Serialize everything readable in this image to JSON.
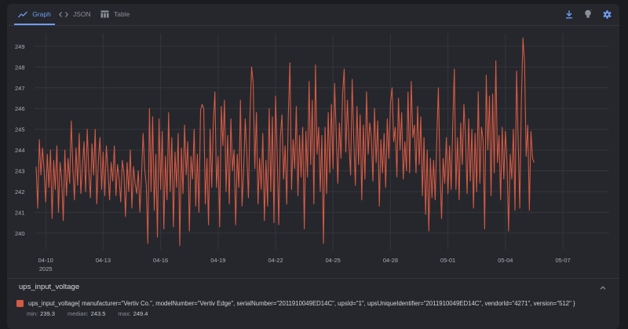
{
  "tabs": [
    {
      "label": "Graph",
      "icon": "line-chart-icon",
      "active": true
    },
    {
      "label": "JSON",
      "icon": "code-icon",
      "active": false
    },
    {
      "label": "Table",
      "icon": "table-icon",
      "active": false
    }
  ],
  "toolbar": {
    "download_icon": "download-icon",
    "hint_icon": "lightbulb-icon",
    "settings_icon": "gear-icon"
  },
  "colors": {
    "accent": "#6f9cf5",
    "series": "#d35a45",
    "grid": "#34363c"
  },
  "chart_data": {
    "type": "line",
    "title": "",
    "xlabel": "",
    "ylabel": "",
    "x_ticks": [
      {
        "label": "04-10",
        "sub": "2025",
        "day": "2025-04-10"
      },
      {
        "label": "04-13",
        "day": "2025-04-13"
      },
      {
        "label": "04-16",
        "day": "2025-04-16"
      },
      {
        "label": "04-19",
        "day": "2025-04-19"
      },
      {
        "label": "04-22",
        "day": "2025-04-22"
      },
      {
        "label": "04-25",
        "day": "2025-04-25"
      },
      {
        "label": "04-28",
        "day": "2025-04-28"
      },
      {
        "label": "05-01",
        "day": "2025-05-01"
      },
      {
        "label": "05-04",
        "day": "2025-05-04"
      },
      {
        "label": "05-07",
        "day": "2025-05-07"
      }
    ],
    "y_ticks": [
      240,
      241,
      242,
      243,
      244,
      245,
      246,
      247,
      248,
      249
    ],
    "ylim": [
      239.2,
      249.6
    ],
    "xlim": [
      "2025-04-09T10:00",
      "2025-05-09T10:00"
    ],
    "grid": true,
    "series": [
      {
        "name": "ups_input_voltage{manufacturer=\"Vertiv Co.\", modelNumber=\"Vertiv Edge\", serialNumber=\"2011910049ED14C\", upsId=\"1\", upsUniqueIdentifier=\"2011910049ED14C\", vendorId=\"4271\", version=\"512\"}",
        "start": "2025-04-09T12:00",
        "step_hours": 2,
        "values": [
          243.2,
          241.2,
          244.5,
          242.8,
          244.1,
          243.0,
          241.5,
          243.8,
          242.2,
          244.0,
          240.7,
          243.5,
          242.1,
          244.2,
          241.0,
          243.4,
          242.6,
          240.6,
          244.0,
          241.8,
          243.6,
          242.4,
          245.4,
          243.1,
          241.6,
          244.1,
          242.3,
          244.8,
          241.9,
          243.2,
          244.4,
          242.0,
          245.0,
          243.0,
          241.7,
          244.3,
          242.8,
          245.0,
          241.4,
          243.5,
          244.6,
          242.1,
          243.9,
          241.8,
          244.2,
          243.0,
          241.6,
          243.4,
          242.5,
          244.2,
          241.8,
          243.3,
          242.6,
          241.5,
          243.5,
          242.9,
          240.8,
          243.4,
          242.0,
          244.0,
          241.2,
          243.2,
          242.4,
          241.9,
          243.0,
          241.0,
          242.7,
          244.8,
          243.1,
          242.3,
          239.5,
          246.0,
          242.0,
          245.6,
          241.1,
          243.8,
          239.8,
          245.5,
          242.1,
          244.9,
          240.2,
          243.7,
          241.6,
          245.8,
          242.0,
          244.6,
          240.3,
          243.9,
          242.2,
          244.8,
          239.4,
          244.1,
          241.9,
          245.2,
          242.8,
          244.4,
          240.1,
          243.7,
          242.6,
          245.0,
          241.3,
          243.8,
          241.0,
          245.9,
          246.2,
          246.0,
          241.4,
          243.6,
          240.4,
          245.0,
          242.2,
          245.3,
          246.8,
          242.2,
          243.7,
          240.3,
          246.1,
          244.2,
          246.4,
          242.0,
          244.7,
          241.4,
          245.5,
          243.0,
          244.0,
          240.4,
          243.8,
          242.2,
          246.4,
          241.3,
          243.0,
          245.5,
          243.8,
          241.7,
          245.7,
          248.0,
          247.2,
          243.1,
          245.8,
          241.4,
          243.6,
          242.1,
          244.8,
          240.6,
          243.5,
          241.3,
          246.0,
          242.0,
          245.6,
          240.5,
          246.6,
          243.8,
          240.4,
          244.6,
          245.7,
          242.6,
          244.2,
          241.4,
          245.7,
          248.2,
          242.1,
          244.5,
          243.1,
          246.1,
          241.8,
          244.7,
          242.7,
          245.1,
          240.2,
          244.9,
          242.7,
          247.3,
          243.3,
          246.4,
          241.4,
          248.1,
          243.8,
          245.1,
          242.0,
          244.7,
          239.5,
          245.1,
          241.9,
          245.8,
          242.9,
          246.2,
          243.1,
          247.2,
          244.8,
          242.4,
          245.3,
          243.6,
          246.7,
          247.9,
          243.9,
          246.4,
          244.3,
          242.8,
          247.4,
          244.5,
          242.3,
          246.1,
          243.3,
          245.7,
          241.6,
          245.2,
          242.6,
          246.8,
          243.8,
          245.3,
          244.6,
          242.5,
          246.0,
          243.4,
          245.4,
          241.3,
          244.5,
          242.9,
          244.8,
          242.2,
          245.5,
          243.6,
          246.3,
          247.0,
          244.4,
          245.1,
          242.7,
          246.5,
          244.0,
          245.8,
          242.6,
          244.4,
          243.0,
          246.8,
          242.9,
          247.3,
          244.6,
          245.2,
          242.9,
          246.1,
          243.3,
          245.6,
          241.8,
          244.6,
          240.9,
          244.0,
          240.1,
          243.6,
          241.7,
          243.5,
          241.6,
          244.5,
          247.0,
          243.0,
          240.7,
          243.6,
          242.4,
          244.6,
          241.9,
          244.2,
          242.1,
          245.2,
          247.9,
          242.1,
          244.6,
          241.6,
          245.3,
          243.3,
          246.2,
          244.7,
          241.9,
          245.5,
          242.5,
          245.0,
          241.2,
          244.8,
          242.0,
          246.8,
          242.4,
          245.1,
          244.5,
          240.2,
          247.6,
          244.0,
          246.6,
          241.8,
          246.7,
          242.9,
          248.3,
          243.4,
          244.7,
          241.6,
          245.1,
          242.6,
          244.9,
          243.4,
          240.1,
          243.8,
          242.6,
          245.0,
          241.1,
          247.8,
          244.4,
          241.2,
          246.4,
          249.4,
          248.2,
          243.7,
          245.2,
          241.1,
          244.9,
          243.6,
          243.4
        ]
      }
    ]
  },
  "series_panel": {
    "title": "ups_input_voltage",
    "legend_label": "ups_input_voltage{ manufacturer=\"Vertiv Co.\", modelNumber=\"Vertiv Edge\", serialNumber=\"2011910049ED14C\", upsId=\"1\", upsUniqueIdentifier=\"2011910049ED14C\", vendorId=\"4271\", version=\"512\" }",
    "stats": [
      {
        "key": "min:",
        "value": "239.3"
      },
      {
        "key": "median:",
        "value": "243.5"
      },
      {
        "key": "max:",
        "value": "249.4"
      }
    ]
  }
}
